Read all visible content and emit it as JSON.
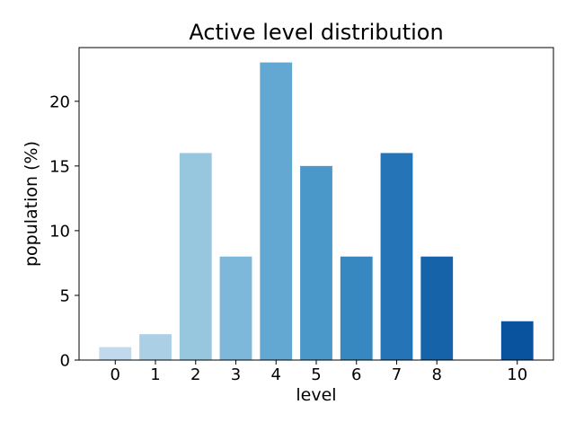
{
  "chart_data": {
    "type": "bar",
    "title": "Active level distribution",
    "xlabel": "level",
    "ylabel": "population (%)",
    "x": [
      0,
      1,
      2,
      3,
      4,
      5,
      6,
      7,
      8,
      10
    ],
    "values": [
      1,
      2,
      16,
      8,
      23,
      15,
      8,
      16,
      8,
      3
    ],
    "colors": [
      "#c1d9ed",
      "#abd0e6",
      "#97c6df",
      "#7db8da",
      "#62a8d3",
      "#4a98c9",
      "#3787c0",
      "#2474b7",
      "#1663aa",
      "#09529d"
    ],
    "xlim": [
      -0.9,
      10.9
    ],
    "ylim": [
      0,
      24.15
    ],
    "yticks": [
      0,
      5,
      10,
      15,
      20
    ],
    "xticks": [
      0,
      1,
      2,
      3,
      4,
      5,
      6,
      7,
      8,
      10
    ],
    "grid": false,
    "legend": "none"
  }
}
